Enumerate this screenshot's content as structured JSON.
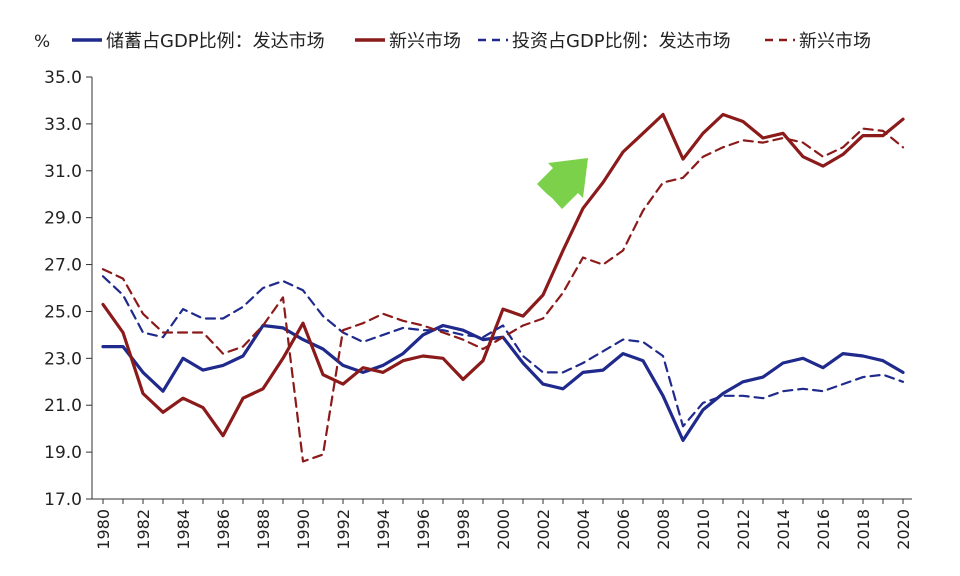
{
  "chart_data": {
    "type": "line",
    "ylabel": "%",
    "ylim": [
      17.0,
      35.0
    ],
    "yticks": [
      "17.0",
      "19.0",
      "21.0",
      "23.0",
      "25.0",
      "27.0",
      "29.0",
      "31.0",
      "33.0",
      "35.0"
    ],
    "xticks": [
      "1980",
      "1982",
      "1984",
      "1986",
      "1988",
      "1990",
      "1992",
      "1994",
      "1996",
      "1998",
      "2000",
      "2002",
      "2004",
      "2006",
      "2008",
      "2010",
      "2012",
      "2014",
      "2016",
      "2018",
      "2020"
    ],
    "grid": false,
    "legend_position": "top",
    "x": [
      1980,
      1981,
      1982,
      1983,
      1984,
      1985,
      1986,
      1987,
      1988,
      1989,
      1990,
      1991,
      1992,
      1993,
      1994,
      1995,
      1996,
      1997,
      1998,
      1999,
      2000,
      2001,
      2002,
      2003,
      2004,
      2005,
      2006,
      2007,
      2008,
      2009,
      2010,
      2011,
      2012,
      2013,
      2014,
      2015,
      2016,
      2017,
      2018,
      2019,
      2020
    ],
    "series": [
      {
        "name": "储蓄占GDP比例：发达市场",
        "color": "#1f2a8c",
        "dash": false,
        "values": [
          23.5,
          23.5,
          22.4,
          21.6,
          23.0,
          22.5,
          22.7,
          23.1,
          24.4,
          24.3,
          23.8,
          23.4,
          22.7,
          22.4,
          22.7,
          23.2,
          24.0,
          24.4,
          24.2,
          23.8,
          23.9,
          22.8,
          21.9,
          21.7,
          22.4,
          22.5,
          23.2,
          22.9,
          21.4,
          19.5,
          20.8,
          21.5,
          22.0,
          22.2,
          22.8,
          23.0,
          22.6,
          23.2,
          23.1,
          22.9,
          22.4
        ]
      },
      {
        "name": "新兴市场",
        "color": "#8b1a1a",
        "dash": false,
        "values": [
          25.3,
          24.1,
          21.5,
          20.7,
          21.3,
          20.9,
          19.7,
          21.3,
          21.7,
          23.0,
          24.5,
          22.3,
          21.9,
          22.6,
          22.4,
          22.9,
          23.1,
          23.0,
          22.1,
          22.9,
          25.1,
          24.8,
          25.7,
          27.6,
          29.4,
          30.5,
          31.8,
          32.6,
          33.4,
          31.5,
          32.6,
          33.4,
          33.1,
          32.4,
          32.6,
          31.6,
          31.2,
          31.7,
          32.5,
          32.5,
          33.2
        ]
      },
      {
        "name": "投资占GDP比例：发达市场",
        "color": "#1f2a8c",
        "dash": true,
        "values": [
          26.5,
          25.7,
          24.1,
          23.9,
          25.1,
          24.7,
          24.7,
          25.2,
          26.0,
          26.3,
          25.9,
          24.8,
          24.1,
          23.7,
          24.0,
          24.3,
          24.2,
          24.2,
          24.0,
          23.9,
          24.4,
          23.1,
          22.4,
          22.4,
          22.8,
          23.3,
          23.8,
          23.7,
          23.1,
          20.1,
          21.1,
          21.4,
          21.4,
          21.3,
          21.6,
          21.7,
          21.6,
          21.9,
          22.2,
          22.3,
          22.0
        ]
      },
      {
        "name": "新兴市场",
        "color": "#8b1a1a",
        "dash": true,
        "values": [
          26.8,
          26.4,
          24.9,
          24.1,
          24.1,
          24.1,
          23.2,
          23.5,
          24.4,
          25.6,
          18.6,
          18.9,
          24.2,
          24.5,
          24.9,
          24.6,
          24.4,
          24.1,
          23.8,
          23.4,
          23.9,
          24.4,
          24.7,
          25.8,
          27.3,
          27.0,
          27.6,
          29.3,
          30.5,
          30.7,
          31.6,
          32.0,
          32.3,
          32.2,
          32.4,
          32.2,
          31.6,
          32.0,
          32.8,
          32.7,
          32.0
        ]
      }
    ]
  }
}
